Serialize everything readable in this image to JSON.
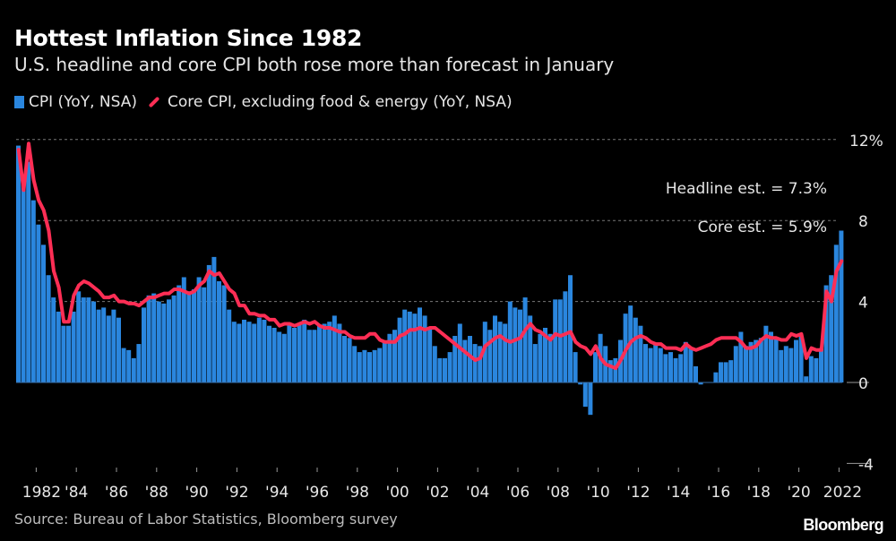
{
  "title": "Hottest Inflation Since 1982",
  "subtitle": "U.S. headline and core CPI both rose more than forecast in January",
  "source": "Source: Bureau of Labor Statistics, Bloomberg survey",
  "logo": "Bloomberg",
  "colors": {
    "cpi": "#2a86de",
    "core": "#ff2e55",
    "background": "#000000"
  },
  "chart_data": {
    "type": "bar+line",
    "frequency": "quarterly",
    "x_start": "1981-Q1",
    "x_end": "2022-Q1",
    "ylim": [
      -4,
      12
    ],
    "yticks": [
      {
        "value": 12,
        "label": "12%"
      },
      {
        "value": 8,
        "label": "8"
      },
      {
        "value": 4,
        "label": "4"
      },
      {
        "value": 0,
        "label": "0"
      },
      {
        "value": -4,
        "label": "-4"
      }
    ],
    "xticks": [
      {
        "year": 1982,
        "label": "1982"
      },
      {
        "year": 1984,
        "label": "'84"
      },
      {
        "year": 1986,
        "label": "'86"
      },
      {
        "year": 1988,
        "label": "'88"
      },
      {
        "year": 1990,
        "label": "'90"
      },
      {
        "year": 1992,
        "label": "'92"
      },
      {
        "year": 1994,
        "label": "'94"
      },
      {
        "year": 1996,
        "label": "'96"
      },
      {
        "year": 1998,
        "label": "'98"
      },
      {
        "year": 2000,
        "label": "'00"
      },
      {
        "year": 2002,
        "label": "'02"
      },
      {
        "year": 2004,
        "label": "'04"
      },
      {
        "year": 2006,
        "label": "'06"
      },
      {
        "year": 2008,
        "label": "'08"
      },
      {
        "year": 2010,
        "label": "'10"
      },
      {
        "year": 2012,
        "label": "'12"
      },
      {
        "year": 2014,
        "label": "'14"
      },
      {
        "year": 2016,
        "label": "'16"
      },
      {
        "year": 2018,
        "label": "'18"
      },
      {
        "year": 2020,
        "label": "'20"
      },
      {
        "year": 2022,
        "label": "2022"
      }
    ],
    "grid": "dotted horizontal",
    "legend_placement": "top-left",
    "series": [
      {
        "name": "CPI (YoY, NSA)",
        "kind": "bar",
        "values": [
          11.7,
          9.8,
          10.9,
          9.0,
          7.8,
          6.8,
          5.3,
          4.2,
          3.5,
          2.8,
          2.8,
          3.5,
          4.5,
          4.2,
          4.2,
          4.0,
          3.6,
          3.7,
          3.3,
          3.6,
          3.2,
          1.7,
          1.6,
          1.2,
          1.9,
          3.7,
          4.3,
          4.4,
          4.0,
          3.9,
          4.1,
          4.3,
          4.8,
          5.2,
          4.5,
          4.6,
          5.2,
          4.7,
          5.8,
          6.2,
          5.0,
          4.8,
          3.6,
          3.0,
          2.9,
          3.1,
          3.0,
          2.9,
          3.2,
          3.1,
          2.8,
          2.7,
          2.5,
          2.4,
          2.9,
          2.7,
          2.9,
          3.1,
          2.6,
          2.6,
          2.8,
          2.9,
          3.0,
          3.3,
          2.9,
          2.3,
          2.2,
          1.8,
          1.5,
          1.6,
          1.5,
          1.6,
          1.7,
          2.0,
          2.4,
          2.6,
          3.2,
          3.6,
          3.5,
          3.4,
          3.7,
          3.3,
          2.7,
          1.8,
          1.2,
          1.2,
          1.5,
          2.3,
          2.9,
          2.1,
          2.3,
          1.9,
          1.8,
          3.0,
          2.6,
          3.3,
          3.0,
          2.9,
          4.0,
          3.7,
          3.6,
          4.2,
          3.3,
          1.9,
          2.4,
          2.7,
          2.4,
          4.1,
          4.1,
          4.5,
          5.3,
          1.5,
          -0.1,
          -1.2,
          -1.6,
          1.5,
          2.4,
          1.8,
          1.1,
          1.2,
          2.1,
          3.4,
          3.8,
          3.2,
          2.8,
          1.9,
          1.7,
          1.9,
          1.7,
          1.4,
          1.5,
          1.2,
          1.4,
          2.0,
          1.7,
          0.8,
          -0.1,
          0.0,
          0.0,
          0.5,
          1.0,
          1.0,
          1.1,
          1.8,
          2.5,
          1.8,
          2.0,
          2.1,
          2.2,
          2.8,
          2.5,
          2.2,
          1.6,
          1.8,
          1.7,
          2.1,
          2.3,
          0.3,
          1.3,
          1.2,
          1.7,
          4.8,
          5.3,
          6.8,
          7.5
        ]
      },
      {
        "name": "Core CPI, excluding food & energy (YoY, NSA)",
        "kind": "line",
        "values": [
          11.5,
          9.5,
          11.8,
          10.0,
          9.0,
          8.5,
          7.5,
          5.5,
          4.7,
          3.0,
          3.0,
          4.3,
          4.8,
          5.0,
          4.9,
          4.7,
          4.5,
          4.2,
          4.2,
          4.3,
          4.0,
          4.0,
          3.9,
          3.9,
          3.8,
          4.0,
          4.2,
          4.2,
          4.3,
          4.4,
          4.4,
          4.6,
          4.6,
          4.5,
          4.4,
          4.5,
          4.8,
          5.0,
          5.5,
          5.3,
          5.4,
          5.0,
          4.6,
          4.4,
          3.8,
          3.8,
          3.4,
          3.4,
          3.3,
          3.3,
          3.1,
          3.1,
          2.8,
          2.9,
          2.9,
          2.8,
          2.9,
          3.0,
          2.9,
          3.0,
          2.8,
          2.7,
          2.7,
          2.6,
          2.5,
          2.5,
          2.3,
          2.2,
          2.2,
          2.2,
          2.4,
          2.4,
          2.1,
          2.0,
          2.0,
          2.0,
          2.3,
          2.4,
          2.6,
          2.6,
          2.7,
          2.6,
          2.7,
          2.7,
          2.5,
          2.3,
          2.1,
          1.9,
          1.7,
          1.5,
          1.3,
          1.1,
          1.2,
          1.8,
          2.0,
          2.2,
          2.3,
          2.1,
          2.0,
          2.1,
          2.2,
          2.6,
          2.9,
          2.6,
          2.5,
          2.3,
          2.1,
          2.4,
          2.3,
          2.4,
          2.5,
          2.0,
          1.8,
          1.7,
          1.4,
          1.8,
          1.2,
          0.9,
          0.8,
          0.7,
          1.1,
          1.6,
          2.0,
          2.2,
          2.3,
          2.2,
          2.0,
          1.9,
          1.9,
          1.7,
          1.7,
          1.7,
          1.6,
          1.9,
          1.7,
          1.6,
          1.7,
          1.8,
          1.9,
          2.1,
          2.2,
          2.2,
          2.2,
          2.2,
          2.0,
          1.7,
          1.7,
          1.8,
          2.1,
          2.3,
          2.2,
          2.2,
          2.1,
          2.1,
          2.4,
          2.3,
          2.4,
          1.2,
          1.7,
          1.6,
          1.6,
          4.5,
          4.0,
          5.5,
          6.0
        ]
      }
    ],
    "annotations": [
      {
        "text": "Headline est. = 7.3%",
        "value": 7.3
      },
      {
        "text": "Core est. = 5.9%",
        "value": 5.9
      }
    ]
  }
}
